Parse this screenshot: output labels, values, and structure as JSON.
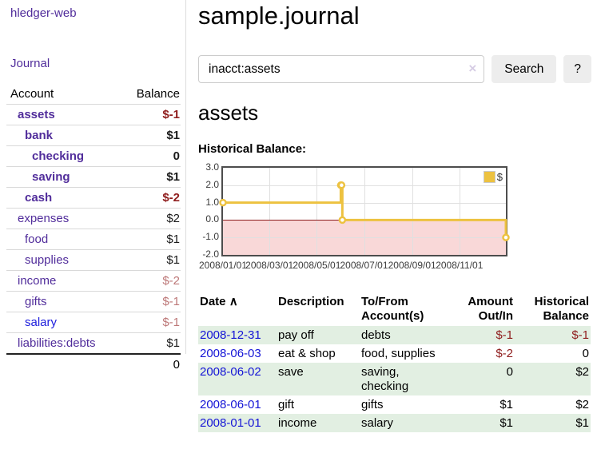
{
  "app_title": "hledger-web",
  "sidebar": {
    "journal_link": "Journal",
    "table": {
      "header_account": "Account",
      "header_balance": "Balance",
      "rows": [
        {
          "name": "assets",
          "depth": 0,
          "matched": true,
          "link": "purple",
          "balance": "$-1",
          "tone": "negative-strong",
          "balance_bold": true
        },
        {
          "name": "bank",
          "depth": 1,
          "matched": true,
          "link": "purple",
          "balance": "$1",
          "tone": "normal",
          "balance_bold": true
        },
        {
          "name": "checking",
          "depth": 2,
          "matched": true,
          "link": "purple",
          "balance": "0",
          "tone": "normal",
          "balance_bold": true
        },
        {
          "name": "saving",
          "depth": 2,
          "matched": true,
          "link": "purple",
          "balance": "$1",
          "tone": "normal",
          "balance_bold": true
        },
        {
          "name": "cash",
          "depth": 1,
          "matched": true,
          "link": "purple",
          "balance": "$-2",
          "tone": "negative-strong",
          "balance_bold": true
        },
        {
          "name": "expenses",
          "depth": 0,
          "matched": false,
          "link": "purple",
          "balance": "$2",
          "tone": "normal",
          "balance_bold": false
        },
        {
          "name": "food",
          "depth": 1,
          "matched": false,
          "link": "purple",
          "balance": "$1",
          "tone": "normal",
          "balance_bold": false
        },
        {
          "name": "supplies",
          "depth": 1,
          "matched": false,
          "link": "purple",
          "balance": "$1",
          "tone": "normal",
          "balance_bold": false
        },
        {
          "name": "income",
          "depth": 0,
          "matched": false,
          "link": "purple",
          "balance": "$-2",
          "tone": "negative-weak",
          "balance_bold": false
        },
        {
          "name": "gifts",
          "depth": 1,
          "matched": false,
          "link": "purple",
          "balance": "$-1",
          "tone": "negative-weak",
          "balance_bold": false
        },
        {
          "name": "salary",
          "depth": 1,
          "matched": false,
          "link": "blue",
          "balance": "$-1",
          "tone": "negative-weak",
          "balance_bold": false
        },
        {
          "name": "liabilities:debts",
          "depth": 0,
          "matched": false,
          "link": "purple",
          "balance": "$1",
          "tone": "normal",
          "balance_bold": false
        }
      ],
      "total": "0"
    }
  },
  "main": {
    "title": "sample.journal",
    "search": {
      "value": "inacct:assets",
      "clear_icon": "×",
      "search_button": "Search",
      "help_button": "?"
    },
    "account_heading": "assets",
    "section_label": "Historical Balance:"
  },
  "chart_data": {
    "type": "line",
    "step": true,
    "title": "Historical Balance:",
    "series": [
      {
        "name": "$",
        "color": "#edc240",
        "points": [
          [
            "2008-01-01",
            1
          ],
          [
            "2008-06-01",
            2
          ],
          [
            "2008-06-02",
            2
          ],
          [
            "2008-06-03",
            0
          ],
          [
            "2008-12-31",
            -1
          ]
        ]
      }
    ],
    "x_range": [
      "2008-01-01",
      "2008-12-31"
    ],
    "ylim": [
      -2,
      3
    ],
    "x_ticks": [
      "2008/01/01",
      "2008/03/01",
      "2008/05/01",
      "2008/07/01",
      "2008/09/01",
      "2008/11/01"
    ],
    "y_ticks": [
      3.0,
      2.0,
      1.0,
      0.0,
      -1.0,
      -2.0
    ],
    "grid": true,
    "legend": {
      "label": "$",
      "position": "top-right"
    },
    "negative_fill": "#f9d8d8",
    "zero_line_color": "#8b1a1a"
  },
  "register": {
    "headers": {
      "date": {
        "label": "Date",
        "sort_icon": "∧"
      },
      "description": "Description",
      "tofrom_line1": "To/From",
      "tofrom_line2": "Account(s)",
      "amount_line1": "Amount",
      "amount_line2": "Out/In",
      "balance_line1": "Historical",
      "balance_line2": "Balance"
    },
    "rows": [
      {
        "date": "2008-12-31",
        "description": "pay off",
        "accounts": "debts",
        "amount": "$-1",
        "amount_negative": true,
        "balance": "$-1",
        "balance_negative": true
      },
      {
        "date": "2008-06-03",
        "description": "eat & shop",
        "accounts": "food, supplies",
        "amount": "$-2",
        "amount_negative": true,
        "balance": "0",
        "balance_negative": false
      },
      {
        "date": "2008-06-02",
        "description": "save",
        "accounts": "saving, checking",
        "amount": "0",
        "amount_negative": false,
        "balance": "$2",
        "balance_negative": false
      },
      {
        "date": "2008-06-01",
        "description": "gift",
        "accounts": "gifts",
        "amount": "$1",
        "amount_negative": false,
        "balance": "$2",
        "balance_negative": false
      },
      {
        "date": "2008-01-01",
        "description": "income",
        "accounts": "salary",
        "amount": "$1",
        "amount_negative": false,
        "balance": "$1",
        "balance_negative": false
      }
    ]
  }
}
